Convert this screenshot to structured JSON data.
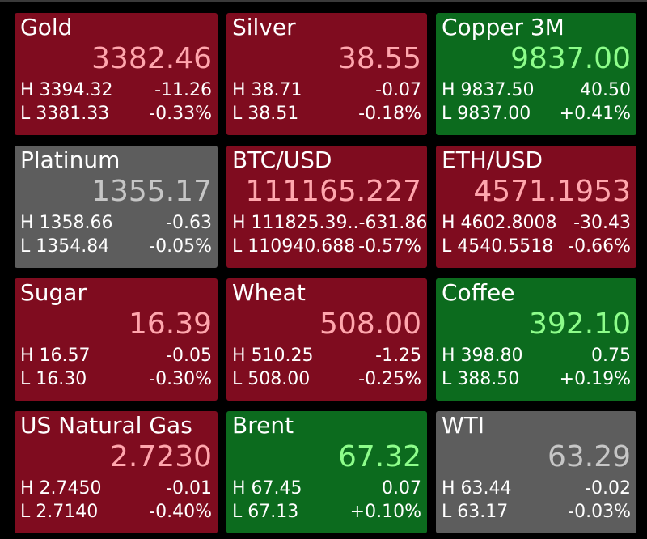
{
  "colors": {
    "background": "#000000",
    "tile_down": "#7f0c1f",
    "tile_up": "#0c6b1e",
    "tile_flat": "#5d5d5d",
    "price_down": "#ffa6ad",
    "price_up": "#8dfd8a",
    "price_flat": "#c6c6c6"
  },
  "tiles": [
    {
      "name": "Gold",
      "price": "3382.46",
      "high": "H 3394.32",
      "change": "-11.26",
      "low": "L 3381.33",
      "change_pct": "-0.33%",
      "trend": "down"
    },
    {
      "name": "Silver",
      "price": "38.55",
      "high": "H 38.71",
      "change": "-0.07",
      "low": "L 38.51",
      "change_pct": "-0.18%",
      "trend": "down"
    },
    {
      "name": "Copper 3M",
      "price": "9837.00",
      "high": "H 9837.50",
      "change": "40.50",
      "low": "L 9837.00",
      "change_pct": "+0.41%",
      "trend": "up"
    },
    {
      "name": "Platinum",
      "price": "1355.17",
      "high": "H 1358.66",
      "change": "-0.63",
      "low": "L 1354.84",
      "change_pct": "-0.05%",
      "trend": "flat"
    },
    {
      "name": "BTC/USD",
      "price": "111165.227",
      "high": "H 111825.39..",
      "change": "-631.86",
      "low": "L 110940.688",
      "change_pct": "-0.57%",
      "trend": "down"
    },
    {
      "name": "ETH/USD",
      "price": "4571.1953",
      "high": "H 4602.8008",
      "change": "-30.43",
      "low": "L 4540.5518",
      "change_pct": "-0.66%",
      "trend": "down"
    },
    {
      "name": "Sugar",
      "price": "16.39",
      "high": "H 16.57",
      "change": "-0.05",
      "low": "L 16.30",
      "change_pct": "-0.30%",
      "trend": "down"
    },
    {
      "name": "Wheat",
      "price": "508.00",
      "high": "H 510.25",
      "change": "-1.25",
      "low": "L 508.00",
      "change_pct": "-0.25%",
      "trend": "down"
    },
    {
      "name": "Coffee",
      "price": "392.10",
      "high": "H 398.80",
      "change": "0.75",
      "low": "L 388.50",
      "change_pct": "+0.19%",
      "trend": "up"
    },
    {
      "name": "US Natural Gas",
      "price": "2.7230",
      "high": "H 2.7450",
      "change": "-0.01",
      "low": "L 2.7140",
      "change_pct": "-0.40%",
      "trend": "down"
    },
    {
      "name": "Brent",
      "price": "67.32",
      "high": "H 67.45",
      "change": "0.07",
      "low": "L 67.13",
      "change_pct": "+0.10%",
      "trend": "up"
    },
    {
      "name": "WTI",
      "price": "63.29",
      "high": "H 63.44",
      "change": "-0.02",
      "low": "L 63.17",
      "change_pct": "-0.03%",
      "trend": "flat"
    }
  ]
}
